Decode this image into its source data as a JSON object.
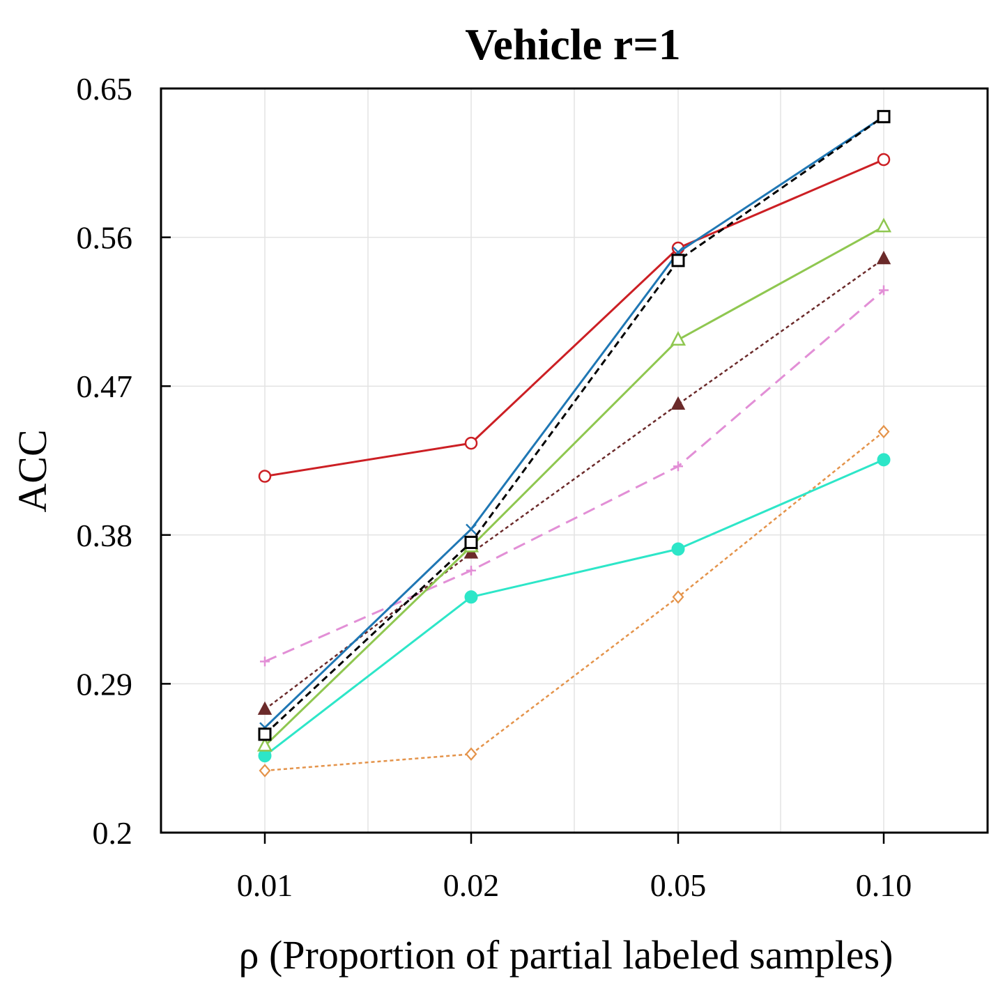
{
  "chart_data": {
    "type": "line",
    "title": "Vehicle r=1",
    "xlabel": "ρ (Proportion of partial labeled samples)",
    "ylabel": "ACC",
    "categories": [
      "0.01",
      "0.02",
      "0.05",
      "0.10"
    ],
    "yticks": [
      "0.2",
      "0.29",
      "0.38",
      "0.47",
      "0.56",
      "0.65"
    ],
    "ylim": [
      0.2,
      0.65
    ],
    "grid": true,
    "legend": "none",
    "series": [
      {
        "name": "red-circle",
        "color": "#cc1f24",
        "marker": "circle-open",
        "dash": "solid",
        "values": [
          0.4155,
          0.4355,
          0.5535,
          0.607
        ]
      },
      {
        "name": "blue-x",
        "color": "#1f77b4",
        "marker": "x",
        "dash": "solid",
        "values": [
          0.2635,
          0.3835,
          0.551,
          0.633
        ]
      },
      {
        "name": "black-square",
        "color": "#000000",
        "marker": "square-open",
        "dash": "dashed",
        "values": [
          0.2595,
          0.3755,
          0.546,
          0.633
        ]
      },
      {
        "name": "green-triangle",
        "color": "#8fc750",
        "marker": "triangle-open",
        "dash": "solid",
        "values": [
          0.2525,
          0.373,
          0.498,
          0.5665
        ]
      },
      {
        "name": "brown-triangle",
        "color": "#6b2a2a",
        "marker": "triangle-filled",
        "dash": "dotted",
        "values": [
          0.2745,
          0.369,
          0.459,
          0.547
        ]
      },
      {
        "name": "pink-plus",
        "color": "#e28fd6",
        "marker": "plus",
        "dash": "longdash",
        "values": [
          0.3035,
          0.3585,
          0.4215,
          0.528
        ]
      },
      {
        "name": "cyan-dot",
        "color": "#2de6c8",
        "marker": "circle-filled",
        "dash": "solid",
        "values": [
          0.2465,
          0.3425,
          0.3715,
          0.4255
        ]
      },
      {
        "name": "orange-diamond",
        "color": "#e4934a",
        "marker": "diamond-open",
        "dash": "dotted",
        "values": [
          0.2375,
          0.2475,
          0.3425,
          0.4425
        ]
      }
    ]
  }
}
